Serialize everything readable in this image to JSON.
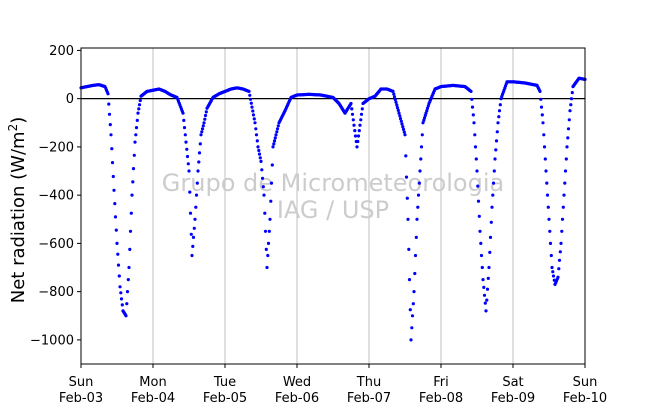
{
  "chart_data": {
    "type": "scatter",
    "title": "",
    "xlabel": "",
    "ylabel": "Net radiation (W/m²)",
    "ylabel_base": "Net radiation (W/m",
    "ylabel_sup": "2",
    "ylabel_close": ")",
    "ylim": [
      -1100,
      210
    ],
    "yticks": [
      200,
      0,
      -200,
      -400,
      -600,
      -800,
      -1000
    ],
    "ytick_labels": [
      "200",
      "0",
      "−200",
      "−400",
      "−600",
      "−800",
      "−1000"
    ],
    "xlim": [
      "2019-02-03T00:00",
      "2019-02-10T00:00"
    ],
    "xticks": [
      {
        "date": "2019-02-03",
        "day": "Sun",
        "label": "Feb-03"
      },
      {
        "date": "2019-02-04",
        "day": "Mon",
        "label": "Feb-04"
      },
      {
        "date": "2019-02-05",
        "day": "Tue",
        "label": "Feb-05"
      },
      {
        "date": "2019-02-06",
        "day": "Wed",
        "label": "Feb-06"
      },
      {
        "date": "2019-02-07",
        "day": "Thu",
        "label": "Feb-07"
      },
      {
        "date": "2019-02-08",
        "day": "Fri",
        "label": "Feb-08"
      },
      {
        "date": "2019-02-09",
        "day": "Sat",
        "label": "Feb-09"
      },
      {
        "date": "2019-02-10",
        "day": "Sun",
        "label": "Feb-10"
      }
    ],
    "grid": "vertical",
    "zero_line": true,
    "marker_color": "#0000ff",
    "watermark": [
      "Grupo de Micrometeorologia",
      "IAG / USP"
    ],
    "series": [
      {
        "values": [
          [
            "2019-02-03T00:00",
            45
          ],
          [
            "2019-02-03T02:00",
            50
          ],
          [
            "2019-02-03T04:00",
            55
          ],
          [
            "2019-02-03T06:00",
            58
          ],
          [
            "2019-02-03T08:00",
            50
          ],
          [
            "2019-02-03T09:00",
            20
          ],
          [
            "2019-02-03T10:00",
            -150
          ],
          [
            "2019-02-03T11:00",
            -380
          ],
          [
            "2019-02-03T12:00",
            -600
          ],
          [
            "2019-02-03T13:00",
            -780
          ],
          [
            "2019-02-03T14:00",
            -880
          ],
          [
            "2019-02-03T15:00",
            -900
          ],
          [
            "2019-02-03T16:00",
            -700
          ],
          [
            "2019-02-03T17:00",
            -400
          ],
          [
            "2019-02-03T18:00",
            -180
          ],
          [
            "2019-02-03T19:00",
            -60
          ],
          [
            "2019-02-03T20:00",
            10
          ],
          [
            "2019-02-03T22:00",
            30
          ],
          [
            "2019-02-04T00:00",
            35
          ],
          [
            "2019-02-04T02:00",
            40
          ],
          [
            "2019-02-04T04:00",
            30
          ],
          [
            "2019-02-04T06:00",
            15
          ],
          [
            "2019-02-04T08:00",
            5
          ],
          [
            "2019-02-04T10:00",
            -60
          ],
          [
            "2019-02-04T12:00",
            -300
          ],
          [
            "2019-02-04T13:00",
            -650
          ],
          [
            "2019-02-04T14:00",
            -500
          ],
          [
            "2019-02-04T15:00",
            -300
          ],
          [
            "2019-02-04T16:00",
            -150
          ],
          [
            "2019-02-04T17:00",
            -100
          ],
          [
            "2019-02-04T18:00",
            -40
          ],
          [
            "2019-02-04T20:00",
            5
          ],
          [
            "2019-02-04T22:00",
            20
          ],
          [
            "2019-02-05T00:00",
            30
          ],
          [
            "2019-02-05T02:00",
            40
          ],
          [
            "2019-02-05T04:00",
            45
          ],
          [
            "2019-02-05T06:00",
            40
          ],
          [
            "2019-02-05T08:00",
            30
          ],
          [
            "2019-02-05T10:00",
            -100
          ],
          [
            "2019-02-05T11:00",
            -200
          ],
          [
            "2019-02-05T12:00",
            -260
          ],
          [
            "2019-02-05T13:00",
            -400
          ],
          [
            "2019-02-05T14:00",
            -700
          ],
          [
            "2019-02-05T15:00",
            -500
          ],
          [
            "2019-02-05T16:00",
            -200
          ],
          [
            "2019-02-05T18:00",
            -100
          ],
          [
            "2019-02-05T20:00",
            -50
          ],
          [
            "2019-02-05T22:00",
            5
          ],
          [
            "2019-02-06T00:00",
            15
          ],
          [
            "2019-02-06T04:00",
            18
          ],
          [
            "2019-02-06T08:00",
            15
          ],
          [
            "2019-02-06T12:00",
            5
          ],
          [
            "2019-02-06T14:00",
            -20
          ],
          [
            "2019-02-06T16:00",
            -60
          ],
          [
            "2019-02-06T18:00",
            -20
          ],
          [
            "2019-02-06T20:00",
            -200
          ],
          [
            "2019-02-06T22:00",
            -20
          ],
          [
            "2019-02-07T00:00",
            0
          ],
          [
            "2019-02-07T02:00",
            10
          ],
          [
            "2019-02-07T04:00",
            40
          ],
          [
            "2019-02-07T06:00",
            40
          ],
          [
            "2019-02-07T08:00",
            30
          ],
          [
            "2019-02-07T10:00",
            -60
          ],
          [
            "2019-02-07T12:00",
            -150
          ],
          [
            "2019-02-07T13:00",
            -500
          ],
          [
            "2019-02-07T14:00",
            -1000
          ],
          [
            "2019-02-07T15:00",
            -800
          ],
          [
            "2019-02-07T16:00",
            -500
          ],
          [
            "2019-02-07T17:00",
            -300
          ],
          [
            "2019-02-07T18:00",
            -100
          ],
          [
            "2019-02-07T20:00",
            -20
          ],
          [
            "2019-02-07T22:00",
            40
          ],
          [
            "2019-02-08T00:00",
            50
          ],
          [
            "2019-02-08T04:00",
            55
          ],
          [
            "2019-02-08T08:00",
            50
          ],
          [
            "2019-02-08T10:00",
            30
          ],
          [
            "2019-02-08T11:00",
            -100
          ],
          [
            "2019-02-08T12:00",
            -300
          ],
          [
            "2019-02-08T13:00",
            -550
          ],
          [
            "2019-02-08T14:00",
            -750
          ],
          [
            "2019-02-08T15:00",
            -880
          ],
          [
            "2019-02-08T16:00",
            -700
          ],
          [
            "2019-02-08T17:00",
            -450
          ],
          [
            "2019-02-08T18:00",
            -250
          ],
          [
            "2019-02-08T19:00",
            -100
          ],
          [
            "2019-02-08T20:00",
            0
          ],
          [
            "2019-02-08T22:00",
            70
          ],
          [
            "2019-02-09T00:00",
            70
          ],
          [
            "2019-02-09T04:00",
            65
          ],
          [
            "2019-02-09T08:00",
            55
          ],
          [
            "2019-02-09T09:00",
            30
          ],
          [
            "2019-02-09T10:00",
            -100
          ],
          [
            "2019-02-09T11:00",
            -300
          ],
          [
            "2019-02-09T12:00",
            -500
          ],
          [
            "2019-02-09T13:00",
            -700
          ],
          [
            "2019-02-09T14:00",
            -770
          ],
          [
            "2019-02-09T15:00",
            -740
          ],
          [
            "2019-02-09T16:00",
            -600
          ],
          [
            "2019-02-09T17:00",
            -400
          ],
          [
            "2019-02-09T18:00",
            -200
          ],
          [
            "2019-02-09T19:00",
            -50
          ],
          [
            "2019-02-09T20:00",
            50
          ],
          [
            "2019-02-09T22:00",
            85
          ],
          [
            "2019-02-10T00:00",
            80
          ]
        ]
      }
    ]
  }
}
